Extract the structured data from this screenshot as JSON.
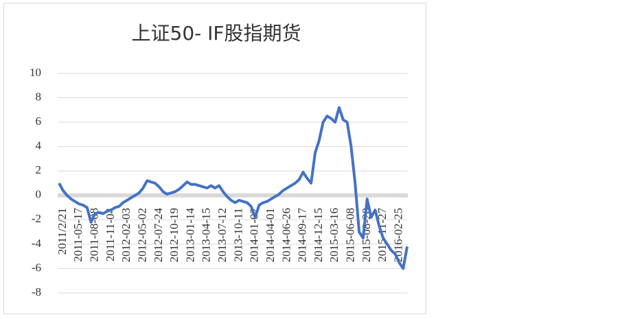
{
  "chart_data": {
    "type": "line",
    "title": "上证50- IF股指期货",
    "categories": [
      "2011/2/21",
      null,
      null,
      null,
      "2011-05-17",
      null,
      null,
      null,
      "2011-08-08",
      null,
      null,
      null,
      "2011-11-04",
      null,
      null,
      null,
      "2012-02-03",
      null,
      null,
      null,
      "2012-05-02",
      null,
      null,
      null,
      "2012-07-24",
      null,
      null,
      null,
      "2012-10-19",
      null,
      null,
      null,
      "2013-01-14",
      null,
      null,
      null,
      "2013-04-15",
      null,
      null,
      null,
      "2013-07-12",
      null,
      null,
      null,
      "2013-10-11",
      null,
      null,
      null,
      "2014-01-02",
      null,
      null,
      null,
      "2014-04-01",
      null,
      null,
      null,
      "2014-06-26",
      null,
      null,
      null,
      "2014-09-17",
      null,
      null,
      null,
      "2014-12-15",
      null,
      null,
      null,
      "2015-03-16",
      null,
      null,
      null,
      "2015-06-08",
      null,
      null,
      null,
      "2015-08-28",
      null,
      null,
      null,
      "2015-11-27",
      null,
      null,
      null,
      "2016-02-25",
      null,
      null,
      null
    ],
    "values": [
      1.0,
      0.4,
      0.0,
      -0.3,
      -0.5,
      -0.7,
      -0.8,
      -1.0,
      -2.2,
      -1.5,
      -1.4,
      -1.5,
      -1.3,
      -1.2,
      -1.0,
      -0.9,
      -0.6,
      -0.4,
      -0.2,
      0.0,
      0.2,
      0.6,
      1.2,
      1.1,
      1.0,
      0.7,
      0.3,
      0.1,
      0.2,
      0.3,
      0.5,
      0.8,
      1.1,
      0.9,
      0.9,
      0.8,
      0.7,
      0.6,
      0.8,
      0.6,
      0.8,
      0.3,
      -0.1,
      -0.4,
      -0.6,
      -0.4,
      -0.5,
      -0.6,
      -0.9,
      -1.8,
      -0.8,
      -0.6,
      -0.5,
      -0.3,
      -0.1,
      0.1,
      0.4,
      0.6,
      0.8,
      1.0,
      1.3,
      1.9,
      1.4,
      1.0,
      3.5,
      4.5,
      6.0,
      6.5,
      6.3,
      6.0,
      7.2,
      6.2,
      6.0,
      4.0,
      1.0,
      -3.0,
      -3.5,
      -0.3,
      -1.8,
      -1.2,
      -2.5,
      -3.5,
      -4.0,
      -4.5,
      -4.8,
      -5.5,
      -6.0,
      -4.2
    ],
    "color": "#4472c4",
    "ylim": [
      -8,
      10
    ],
    "yticks": [
      -8,
      -6,
      -4,
      -2,
      0,
      2,
      4,
      6,
      8,
      10
    ],
    "grid": true
  }
}
